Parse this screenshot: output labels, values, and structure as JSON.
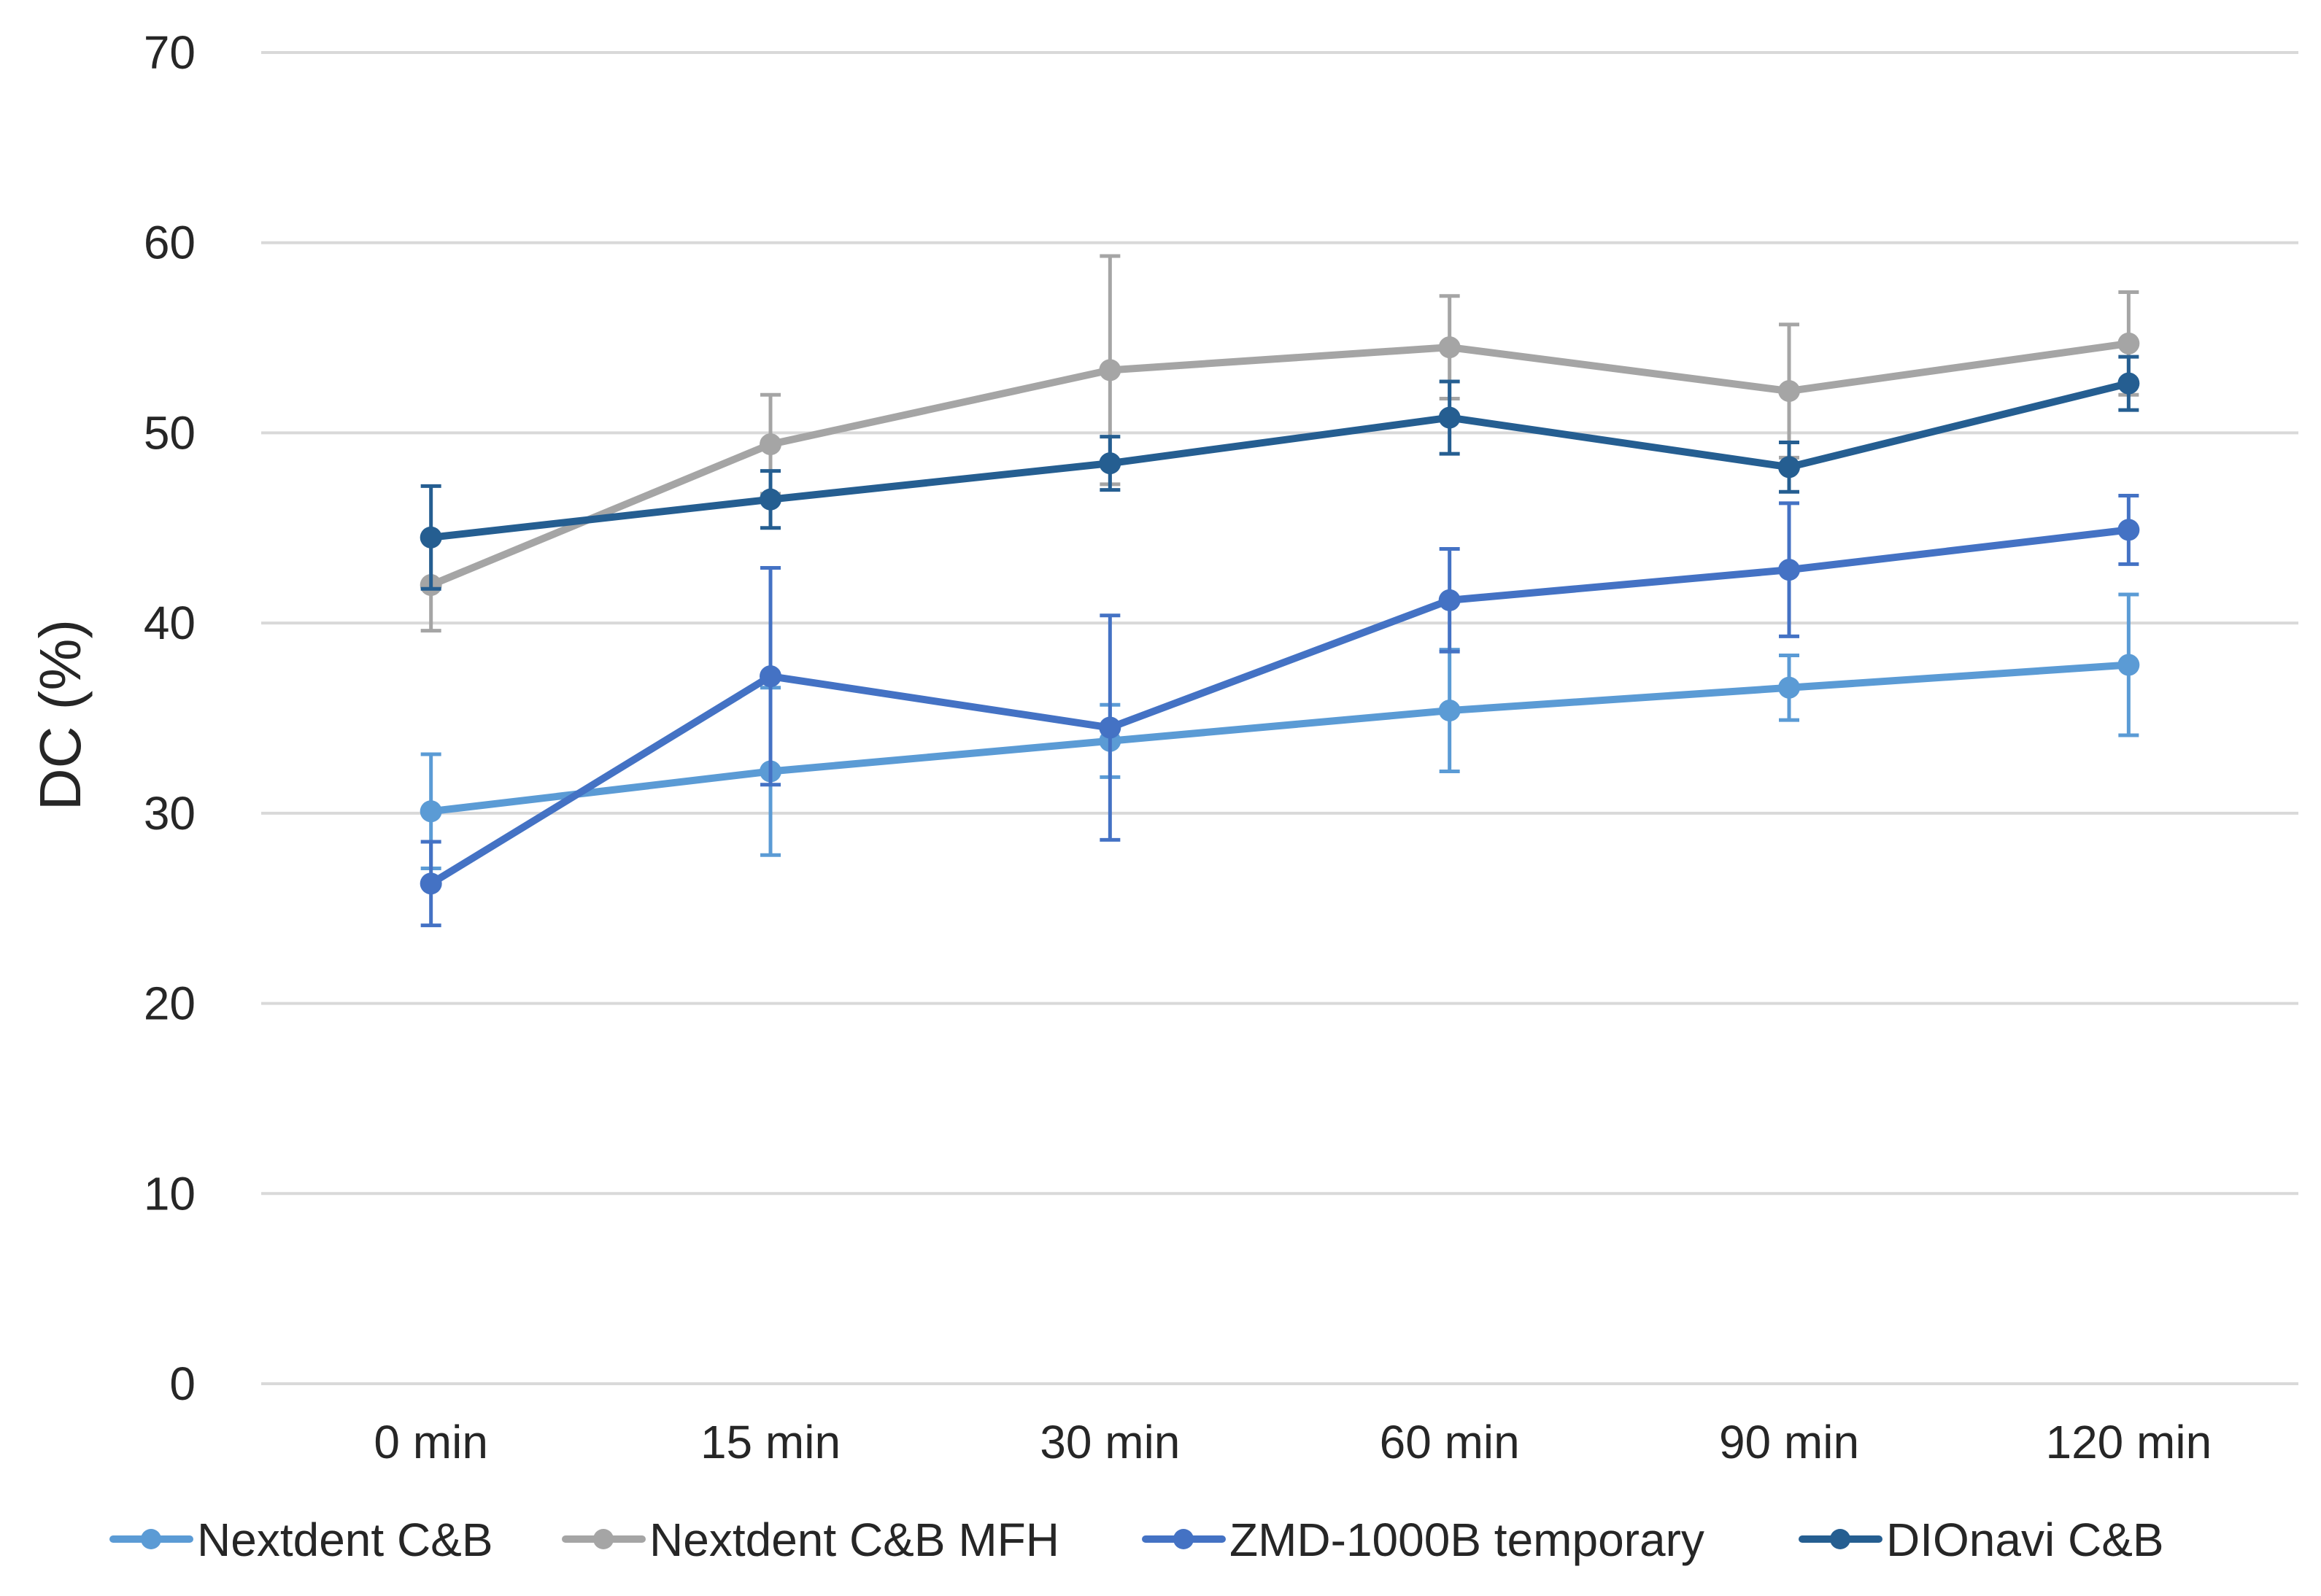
{
  "chart_data": {
    "type": "line",
    "title": "",
    "xlabel": "",
    "ylabel": "DC (%)",
    "ylim": [
      0,
      70
    ],
    "yticks": [
      0,
      10,
      20,
      30,
      40,
      50,
      60,
      70
    ],
    "grid": true,
    "legend_position": "bottom",
    "categories": [
      "0 min",
      "15 min",
      "30 min",
      "60 min",
      "90 min",
      "120 min"
    ],
    "series": [
      {
        "name": "Nextdent C&B",
        "color": "#5b9bd5",
        "values": [
          30.1,
          32.2,
          33.8,
          35.4,
          36.6,
          37.8
        ],
        "errors": [
          3.0,
          4.4,
          1.9,
          3.2,
          1.7,
          3.7
        ]
      },
      {
        "name": "Nextdent C&B MFH",
        "color": "#a5a5a5",
        "values": [
          42.0,
          49.4,
          53.3,
          54.5,
          52.2,
          54.7
        ],
        "errors": [
          2.4,
          2.6,
          6.0,
          2.7,
          3.5,
          2.7
        ]
      },
      {
        "name": "ZMD-1000B temporary",
        "color": "#4472c4",
        "values": [
          26.3,
          37.2,
          34.5,
          41.2,
          42.8,
          44.9
        ],
        "errors": [
          2.2,
          5.7,
          5.9,
          2.7,
          3.5,
          1.8
        ]
      },
      {
        "name": "DIOnavi C&B",
        "color": "#255e91",
        "values": [
          44.5,
          46.5,
          48.4,
          50.8,
          48.2,
          52.6
        ],
        "errors": [
          2.7,
          1.5,
          1.4,
          1.9,
          1.3,
          1.4
        ]
      }
    ]
  }
}
